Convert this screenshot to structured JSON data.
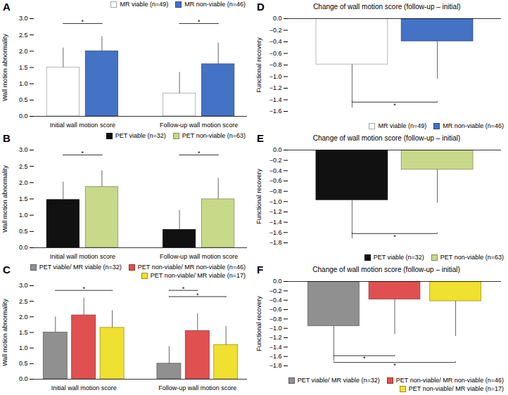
{
  "chart_data": [
    {
      "type": "bar",
      "title": "A",
      "categories": [
        "Initial wall motion score",
        "Follow-up wall motion score"
      ],
      "series": [
        {
          "name": "MR viable (n=49)",
          "color": "white",
          "values": [
            1.5,
            0.7
          ],
          "errors_up": [
            0.6,
            0.65
          ]
        },
        {
          "name": "MR non-viable (n=46)",
          "color": "#4472c4",
          "values": [
            2.0,
            1.6
          ],
          "errors_up": [
            0.45,
            0.65
          ]
        }
      ],
      "ylabel": "Wall motion abnormality",
      "ylim": [
        0.0,
        3.0
      ],
      "yticks": [
        {
          "value": 0.0,
          "label": "0.0"
        },
        0.5,
        {
          "value": 1.0,
          "label": "1.0"
        },
        1.5,
        {
          "value": 2.0,
          "label": "2.0"
        },
        2.5,
        {
          "value": 3.0,
          "label": "3.0"
        }
      ],
      "legend": "upper right",
      "annotations": [
        {
          "text": "*",
          "group": "Initial wall motion score",
          "from": "MR viable (n=49)",
          "to": "MR non-viable (n=46)",
          "y": 2.85
        },
        {
          "text": "*",
          "group": "Follow-up wall motion score",
          "from": "MR viable (n=49)",
          "to": "MR non-viable (n=46)",
          "y": 2.85
        }
      ]
    },
    {
      "type": "bar",
      "title": "B",
      "categories": [
        "Initial wall motion score",
        "Follow-up wall motion score"
      ],
      "series": [
        {
          "name": "PET viable (n=32)",
          "color": "#111111",
          "values": [
            1.47,
            0.55
          ],
          "errors_up": [
            0.55,
            0.6
          ]
        },
        {
          "name": "PET non-viable (n=63)",
          "color": "#c8d98a",
          "values": [
            1.87,
            1.49
          ],
          "errors_up": [
            0.5,
            0.65
          ]
        }
      ],
      "ylabel": "Wall motion abnormality",
      "ylim": [
        0.0,
        3.0
      ],
      "yticks": [
        {
          "value": 0.0,
          "label": "0.0"
        },
        0.5,
        {
          "value": 1.0,
          "label": "1.0"
        },
        1.5,
        {
          "value": 2.0,
          "label": "2.0"
        },
        2.5,
        {
          "value": 3.0,
          "label": "3.0"
        }
      ],
      "legend": "upper right",
      "annotations": [
        {
          "text": "*",
          "group": "Initial wall motion score",
          "from": "PET viable (n=32)",
          "to": "PET non-viable (n=63)",
          "y": 2.85
        },
        {
          "text": "*",
          "group": "Follow-up wall motion score",
          "from": "PET viable (n=32)",
          "to": "PET non-viable (n=63)",
          "y": 2.85
        }
      ]
    },
    {
      "type": "bar",
      "title": "C",
      "categories": [
        "Initial wall motion score",
        "Follow-up wall motion score"
      ],
      "series": [
        {
          "name": "PET viable/ MR viable (n=32)",
          "color": "#909090",
          "values": [
            1.5,
            0.5
          ],
          "errors_up": [
            0.5,
            0.55
          ]
        },
        {
          "name": "PET non-viable/ MR non-viable (n=46)",
          "color": "#e05050",
          "values": [
            2.05,
            1.55
          ],
          "errors_up": [
            0.55,
            0.55
          ]
        },
        {
          "name": "PET non-viable/ MR viable (n=17)",
          "color": "#f0e030",
          "values": [
            1.65,
            1.1
          ],
          "errors_up": [
            0.55,
            0.6
          ]
        }
      ],
      "ylabel": "Wall motion abnormality",
      "ylim": [
        0.0,
        3.0
      ],
      "yticks": [
        {
          "value": 0.0,
          "label": "0.0"
        },
        0.5,
        {
          "value": 1.0,
          "label": "1.0"
        },
        1.5,
        {
          "value": 2.0,
          "label": "2.0"
        },
        2.5,
        {
          "value": 3.0,
          "label": "3.0"
        }
      ],
      "legend": "upper right",
      "annotations": [
        {
          "text": "*",
          "group": "Initial wall motion score",
          "from": "PET viable/ MR viable (n=32)",
          "to": "PET non-viable/ MR viable (n=17)",
          "y": 2.85
        },
        {
          "text": "*",
          "group": "Follow-up wall motion score",
          "from": "PET viable/ MR viable (n=32)",
          "to": "PET non-viable/ MR non-viable (n=46)",
          "y": 2.85
        },
        {
          "text": "*",
          "group": "Follow-up wall motion score",
          "from": "PET viable/ MR viable (n=32)",
          "to": "PET non-viable/ MR viable (n=17)",
          "y": 2.65
        }
      ]
    },
    {
      "type": "bar",
      "title": "D",
      "subtitle": "Change of wall motion score (follow-up – initial)",
      "categories": [
        null
      ],
      "series": [
        {
          "name": "MR viable (n=49)",
          "color": "white",
          "values": [
            -0.79
          ],
          "errors_down": [
            0.75
          ]
        },
        {
          "name": "MR non-viable (n=46)",
          "color": "#4472c4",
          "values": [
            -0.39
          ],
          "errors_down": [
            0.65
          ]
        }
      ],
      "ylabel": "Functional recovery",
      "ylim": [
        -1.6,
        0.0
      ],
      "yticks": [
        {
          "value": 0.0,
          "label": "0.0"
        },
        -0.2,
        -0.4,
        -0.6,
        -0.8,
        {
          "value": -1.0,
          "label": "−1.0"
        },
        -1.2,
        -1.4,
        -1.6
      ],
      "tick_labels": "y",
      "legend": "lower right",
      "annotations": [
        {
          "text": "*",
          "from": "MR viable (n=49)",
          "to": "MR non-viable (n=46)",
          "y": -1.44
        }
      ]
    },
    {
      "type": "bar",
      "title": "E",
      "subtitle": "Change of wall motion score (follow-up – initial)",
      "categories": [
        null
      ],
      "series": [
        {
          "name": "PET viable (n=32)",
          "color": "#111111",
          "values": [
            -0.97
          ],
          "errors_down": [
            0.75
          ]
        },
        {
          "name": "PET non-viable (n=63)",
          "color": "#c8d98a",
          "values": [
            -0.38
          ],
          "errors_down": [
            0.65
          ]
        }
      ],
      "ylabel": "Functional recovery",
      "ylim": [
        -1.8,
        0.0
      ],
      "yticks": [
        {
          "value": 0.0,
          "label": "0.0"
        },
        -0.2,
        -0.4,
        -0.6,
        -0.8,
        {
          "value": -1.0,
          "label": "−1.0"
        },
        -1.2,
        -1.4,
        -1.6,
        -1.8
      ],
      "tick_labels": "y",
      "legend": "lower right",
      "annotations": [
        {
          "text": "*",
          "from": "PET viable (n=32)",
          "to": "PET non-viable (n=63)",
          "y": -1.62
        }
      ]
    },
    {
      "type": "bar",
      "title": "F",
      "subtitle": "Change of wall motion score (follow-up – initial)",
      "categories": [
        null
      ],
      "series": [
        {
          "name": "PET viable/ MR viable (n=32)",
          "color": "#909090",
          "values": [
            -0.95
          ],
          "errors_down": [
            0.75
          ]
        },
        {
          "name": "PET non-viable/ MR non-viable (n=46)",
          "color": "#e05050",
          "values": [
            -0.38
          ],
          "errors_down": [
            0.75
          ]
        },
        {
          "name": "PET non-viable/ MR viable (n=17)",
          "color": "#f0e030",
          "values": [
            -0.42
          ],
          "errors_down": [
            0.75
          ]
        }
      ],
      "ylabel": "Functional recovery",
      "ylim": [
        -1.8,
        0.0
      ],
      "yticks": [
        {
          "value": 0.0,
          "label": "0.0"
        },
        -0.2,
        -0.4,
        -0.6,
        -0.8,
        {
          "value": -1.0,
          "label": "−1.0"
        },
        -1.2,
        -1.4,
        -1.6,
        -1.8
      ],
      "tick_labels": "y",
      "legend": "lower right",
      "annotations": [
        {
          "text": "*",
          "from": "PET viable/ MR viable (n=32)",
          "to": "PET non-viable/ MR non-viable (n=46)",
          "y": -1.584
        },
        {
          "text": "*",
          "from": "PET viable/ MR viable (n=32)",
          "to": "PET non-viable/ MR viable (n=17)",
          "y": -1.728
        }
      ]
    }
  ]
}
